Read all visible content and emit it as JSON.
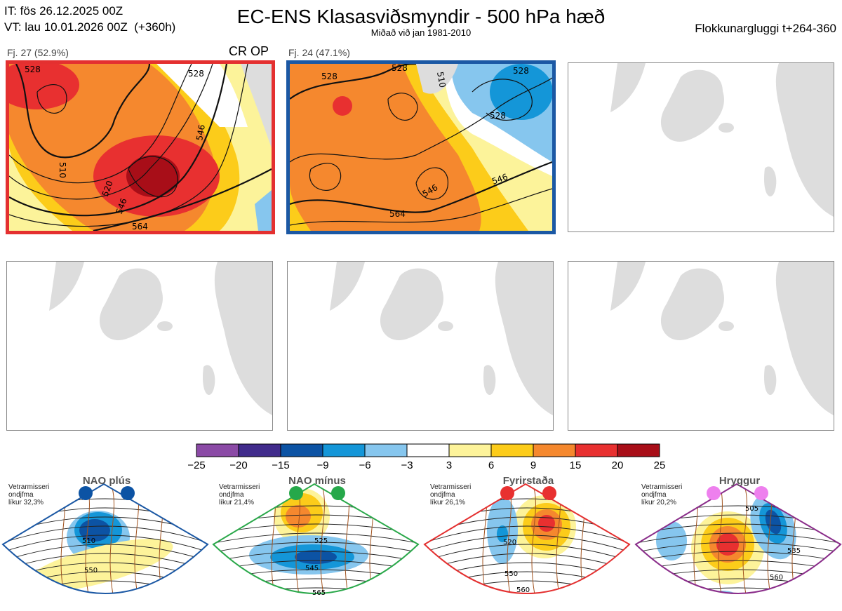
{
  "header": {
    "it_line": "IT: fös 26.12.2025 00Z",
    "vt_line": "VT: lau 10.01.2026 00Z  (+360h)",
    "title": "EC-ENS Klasasviðsmyndir - 500 hPa hæð",
    "subtitle": "Miðað við jan 1981-2010",
    "window": "Flokkunargluggi t+264-360"
  },
  "clusters": [
    {
      "label": "Fj. 27 (52.9%)",
      "tag": "CR OP",
      "color": "#e43030",
      "contour_labels": [
        "528",
        "528",
        "510",
        "520",
        "546",
        "546",
        "564"
      ]
    },
    {
      "label": "Fj. 24 (47.1%)",
      "tag": "",
      "color": "#1b58a4",
      "contour_labels": [
        "528",
        "528",
        "510",
        "528",
        "528",
        "546",
        "546",
        "564"
      ]
    }
  ],
  "chart_data": {
    "type": "heatmap",
    "title": "EC-ENS Klasasviðsmyndir - 500 hPa hæð",
    "colorbar": {
      "ticks": [
        -25,
        -20,
        -15,
        -9,
        -6,
        -3,
        3,
        6,
        9,
        15,
        20,
        25
      ],
      "tick_labels": [
        "−25",
        "−20",
        "−15",
        "−9",
        "−6",
        "−3",
        "3",
        "6",
        "9",
        "15",
        "20",
        "25"
      ],
      "colors": [
        "#8b4aa6",
        "#412c8c",
        "#0c53a4",
        "#1496d8",
        "#86c6ee",
        "#ffffff",
        "#fdf39a",
        "#fccc1a",
        "#f5882e",
        "#e83030",
        "#a80e18"
      ]
    },
    "clusters": [
      {
        "name": "Fj. 27",
        "percent": 52.9,
        "color": "#e43030"
      },
      {
        "name": "Fj. 24",
        "percent": 47.1,
        "color": "#1b58a4"
      }
    ],
    "regimes": [
      {
        "name": "NAO plús",
        "note": [
          "Vetrarmisseri",
          "ondjfma",
          "líkur 32,3%"
        ],
        "probability": 32.3,
        "frame": "#1b58a4",
        "dot": "#0c53a4",
        "contour_labels": [
          "510",
          "550"
        ]
      },
      {
        "name": "NAO mínus",
        "note": [
          "Vetrarmisseri",
          "ondjfma",
          "líkur 21,4%"
        ],
        "probability": 21.4,
        "frame": "#2aa84a",
        "dot": "#26a84a",
        "contour_labels": [
          "525",
          "545",
          "565"
        ]
      },
      {
        "name": "Fyrirstaða",
        "note": [
          "Vetrarmisseri",
          "ondjfma",
          "líkur 26,1%"
        ],
        "probability": 26.1,
        "frame": "#e43030",
        "dot": "#e83030",
        "contour_labels": [
          "520",
          "550",
          "560"
        ]
      },
      {
        "name": "Hryggur",
        "note": [
          "Vetrarmisseri",
          "ondjfma",
          "líkur 20,2%"
        ],
        "probability": 20.2,
        "frame": "#8a2d8a",
        "dot": "#ee80ee",
        "contour_labels": [
          "505",
          "535",
          "560"
        ]
      }
    ]
  }
}
